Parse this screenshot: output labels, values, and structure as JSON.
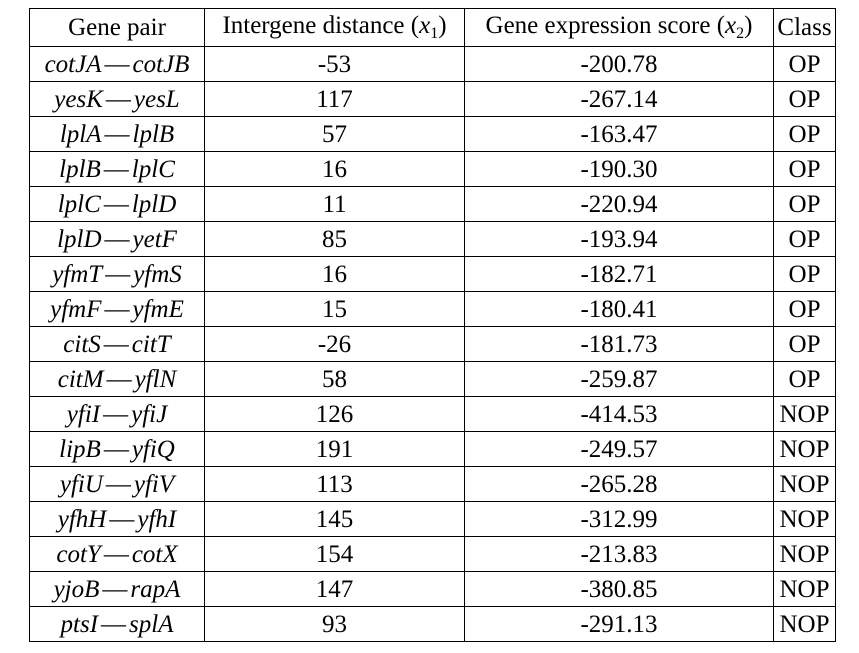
{
  "table": {
    "headers": {
      "gene_pair": "Gene pair",
      "distance": {
        "text": "Intergene distance (",
        "var": "x",
        "sub": "1",
        "close": ")"
      },
      "expression": {
        "text": "Gene expression score (",
        "var": "x",
        "sub": "2",
        "close": ")"
      },
      "class": "Class"
    },
    "dash": "—",
    "rows": [
      {
        "gene_a": "cotJA",
        "gene_b": "cotJB",
        "distance": "-53",
        "score": "-200.78",
        "class": "OP"
      },
      {
        "gene_a": "yesK",
        "gene_b": "yesL",
        "distance": "117",
        "score": "-267.14",
        "class": "OP"
      },
      {
        "gene_a": "lplA",
        "gene_b": "lplB",
        "distance": "57",
        "score": "-163.47",
        "class": "OP"
      },
      {
        "gene_a": "lplB",
        "gene_b": "lplC",
        "distance": "16",
        "score": "-190.30",
        "class": "OP"
      },
      {
        "gene_a": "lplC",
        "gene_b": "lplD",
        "distance": "11",
        "score": "-220.94",
        "class": "OP"
      },
      {
        "gene_a": "lplD",
        "gene_b": "yetF",
        "distance": "85",
        "score": "-193.94",
        "class": "OP"
      },
      {
        "gene_a": "yfmT",
        "gene_b": "yfmS",
        "distance": "16",
        "score": "-182.71",
        "class": "OP"
      },
      {
        "gene_a": "yfmF",
        "gene_b": "yfmE",
        "distance": "15",
        "score": "-180.41",
        "class": "OP"
      },
      {
        "gene_a": "citS",
        "gene_b": "citT",
        "distance": "-26",
        "score": "-181.73",
        "class": "OP"
      },
      {
        "gene_a": "citM",
        "gene_b": "yflN",
        "distance": "58",
        "score": "-259.87",
        "class": "OP"
      },
      {
        "gene_a": "yfiI",
        "gene_b": "yfiJ",
        "distance": "126",
        "score": "-414.53",
        "class": "NOP"
      },
      {
        "gene_a": "lipB",
        "gene_b": "yfiQ",
        "distance": "191",
        "score": "-249.57",
        "class": "NOP"
      },
      {
        "gene_a": "yfiU",
        "gene_b": "yfiV",
        "distance": "113",
        "score": "-265.28",
        "class": "NOP"
      },
      {
        "gene_a": "yfhH",
        "gene_b": "yfhI",
        "distance": "145",
        "score": "-312.99",
        "class": "NOP"
      },
      {
        "gene_a": "cotY",
        "gene_b": "cotX",
        "distance": "154",
        "score": "-213.83",
        "class": "NOP"
      },
      {
        "gene_a": "yjoB",
        "gene_b": "rapA",
        "distance": "147",
        "score": "-380.85",
        "class": "NOP"
      },
      {
        "gene_a": "ptsI",
        "gene_b": "splA",
        "distance": "93",
        "score": "-291.13",
        "class": "NOP"
      }
    ]
  }
}
